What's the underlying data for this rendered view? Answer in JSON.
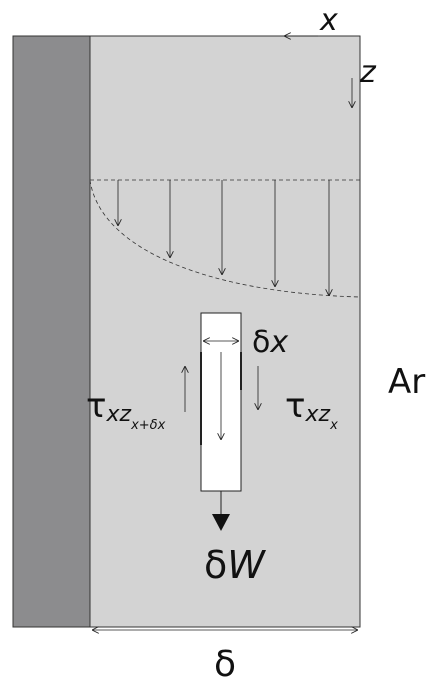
{
  "colors": {
    "film": "#d3d3d3",
    "wall": "#8c8c8e",
    "ink": "#222222",
    "element": "#ffffff"
  },
  "labels": {
    "x_axis": "x",
    "z_axis": "z",
    "ar": "Ar",
    "dx_delta": "δ",
    "dx_var": "x",
    "dw_delta": "δ",
    "dw_var": "W",
    "thickness": "δ",
    "tau_left_main": "τ",
    "tau_left_sub": "xz",
    "tau_left_subsub": "x+δx",
    "tau_right_main": "τ",
    "tau_right_sub": "xz",
    "tau_right_subsub": "x"
  }
}
